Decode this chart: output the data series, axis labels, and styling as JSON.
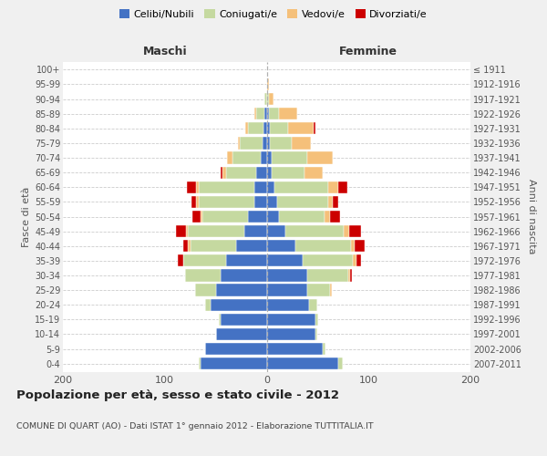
{
  "age_groups": [
    "0-4",
    "5-9",
    "10-14",
    "15-19",
    "20-24",
    "25-29",
    "30-34",
    "35-39",
    "40-44",
    "45-49",
    "50-54",
    "55-59",
    "60-64",
    "65-69",
    "70-74",
    "75-79",
    "80-84",
    "85-89",
    "90-94",
    "95-99",
    "100+"
  ],
  "birth_years": [
    "2007-2011",
    "2002-2006",
    "1997-2001",
    "1992-1996",
    "1987-1991",
    "1982-1986",
    "1977-1981",
    "1972-1976",
    "1967-1971",
    "1962-1966",
    "1957-1961",
    "1952-1956",
    "1947-1951",
    "1942-1946",
    "1937-1941",
    "1932-1936",
    "1927-1931",
    "1922-1926",
    "1917-1921",
    "1912-1916",
    "≤ 1911"
  ],
  "colors": {
    "celibe": "#4472C4",
    "coniugato": "#C5D9A0",
    "vedovo": "#F5C07A",
    "divorziato": "#CC0000"
  },
  "maschi": {
    "celibe": [
      65,
      60,
      50,
      45,
      55,
      50,
      45,
      40,
      30,
      22,
      18,
      12,
      12,
      10,
      6,
      4,
      3,
      2,
      0,
      0,
      0
    ],
    "coniugato": [
      2,
      0,
      0,
      2,
      5,
      20,
      35,
      42,
      45,
      55,
      45,
      55,
      55,
      30,
      28,
      22,
      15,
      8,
      2,
      0,
      0
    ],
    "vedovo": [
      0,
      0,
      0,
      0,
      0,
      0,
      0,
      0,
      2,
      2,
      2,
      2,
      2,
      3,
      5,
      2,
      3,
      2,
      0,
      0,
      0
    ],
    "divorziato": [
      0,
      0,
      0,
      0,
      0,
      0,
      0,
      5,
      5,
      10,
      8,
      5,
      9,
      2,
      0,
      0,
      0,
      0,
      0,
      0,
      0
    ]
  },
  "femmine": {
    "nubile": [
      70,
      55,
      48,
      48,
      42,
      40,
      40,
      35,
      28,
      18,
      12,
      10,
      8,
      5,
      5,
      3,
      3,
      2,
      0,
      0,
      0
    ],
    "coniugata": [
      5,
      3,
      2,
      3,
      8,
      22,
      40,
      50,
      55,
      58,
      45,
      50,
      52,
      32,
      35,
      22,
      18,
      10,
      2,
      0,
      0
    ],
    "vedova": [
      0,
      0,
      0,
      0,
      0,
      2,
      2,
      3,
      3,
      5,
      5,
      5,
      10,
      18,
      25,
      18,
      25,
      18,
      5,
      2,
      0
    ],
    "divorziata": [
      0,
      0,
      0,
      0,
      0,
      0,
      2,
      5,
      10,
      12,
      10,
      5,
      9,
      0,
      0,
      0,
      2,
      0,
      0,
      0,
      0
    ]
  },
  "xlim": 200,
  "title": "Popolazione per età, sesso e stato civile - 2012",
  "subtitle": "COMUNE DI QUART (AO) - Dati ISTAT 1° gennaio 2012 - Elaborazione TUTTITALIA.IT",
  "ylabel_left": "Fasce di età",
  "ylabel_right": "Anni di nascita",
  "xlabel_left": "Maschi",
  "xlabel_right": "Femmine",
  "bg_color": "#f0f0f0",
  "plot_bg": "#ffffff",
  "grid_color": "#cccccc"
}
